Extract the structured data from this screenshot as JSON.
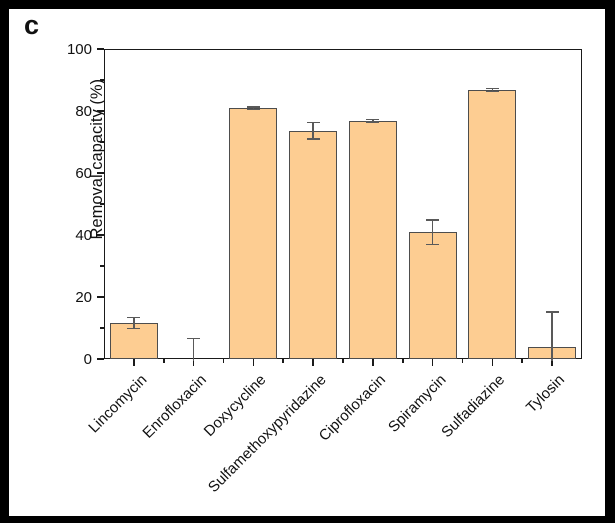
{
  "panel_label": "c",
  "chart_data": {
    "type": "bar",
    "title": "",
    "xlabel": "",
    "ylabel": "Removal capacity (%)",
    "ylim": [
      0,
      100
    ],
    "yticks": [
      0,
      20,
      40,
      60,
      80,
      100
    ],
    "yticks_minor": [
      10,
      30,
      50,
      70,
      90
    ],
    "grid": false,
    "legend_position": "none",
    "bar_color": "#FDCD92",
    "bar_edge_color": "#4D4D4D",
    "error_bar_color": "#595959",
    "axis_color": "#1A1A1A",
    "x_label_rotation_deg": 45,
    "categories": [
      "Lincomycin",
      "Enrofloxacin",
      "Doxycycline",
      "Sulfamethoxypyridazine",
      "Ciprofloxacin",
      "Spiramycin",
      "Sulfadiazine",
      "Tylosin"
    ],
    "values": [
      11.6,
      0.2,
      80.9,
      73.6,
      76.9,
      40.9,
      86.8,
      3.8
    ],
    "errors": [
      1.8,
      6.5,
      0.4,
      2.6,
      0.4,
      4.0,
      0.5,
      11.3
    ]
  }
}
